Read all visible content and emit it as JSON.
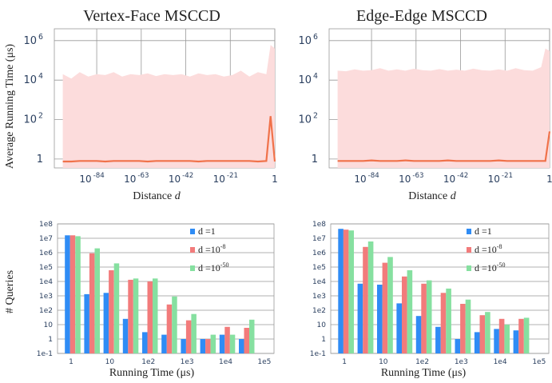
{
  "shared_labels": {
    "top_ylabel": "Average Running Time (μs)",
    "bottom_ylabel": "# Queries",
    "top_xlabel": "Distance d",
    "bottom_xlabel": "Running Time (μs)"
  },
  "colors": {
    "band": "#fcdcdc",
    "line": "#f0724a",
    "d_1": "#2f8cf5",
    "d_1e-8": "#f27b7b",
    "d_1e-50": "#86e0a0",
    "grid": "#999999"
  },
  "chart_data": [
    {
      "type": "area",
      "title": "Vertex-Face MSCCD",
      "xlabel": "Distance d",
      "ylabel": "Average Running Time (μs)",
      "yscale": "log",
      "x_tick_labels": [
        "10^-84",
        "10^-63",
        "10^-42",
        "10^-21",
        "1"
      ],
      "y_tick_labels": [
        "1",
        "10^2",
        "10^4",
        "10^6"
      ],
      "grid": true,
      "series": [
        {
          "kind": "line",
          "x_exp": [
            -100,
            -96,
            -92,
            -88,
            -84,
            -80,
            -76,
            -72,
            -68,
            -64,
            -60,
            -56,
            -52,
            -48,
            -44,
            -40,
            -36,
            -32,
            -28,
            -24,
            -20,
            -16,
            -12,
            -8,
            -4,
            -2,
            0
          ],
          "values": [
            0.75,
            0.75,
            0.8,
            0.8,
            0.8,
            0.75,
            0.8,
            0.8,
            0.8,
            0.8,
            0.75,
            0.8,
            0.8,
            0.8,
            0.8,
            0.8,
            0.75,
            0.8,
            0.8,
            0.8,
            0.8,
            0.8,
            0.8,
            0.75,
            0.8,
            150,
            0.75
          ]
        },
        {
          "kind": "band",
          "x_exp": [
            -100,
            -96,
            -92,
            -88,
            -84,
            -80,
            -76,
            -72,
            -68,
            -64,
            -60,
            -56,
            -52,
            -48,
            -44,
            -40,
            -36,
            -32,
            -28,
            -24,
            -20,
            -16,
            -12,
            -8,
            -4,
            -2,
            0
          ],
          "upper": [
            20000,
            12000,
            25000,
            15000,
            20000,
            18000,
            25000,
            15000,
            20000,
            18000,
            22000,
            16000,
            20000,
            18000,
            20000,
            15000,
            22000,
            18000,
            20000,
            15000,
            18000,
            30000,
            15000,
            25000,
            20000,
            600000,
            400000
          ],
          "lower": [
            0.1,
            0.1,
            0.1,
            0.1,
            0.1,
            0.1,
            0.1,
            0.1,
            0.1,
            0.1,
            0.1,
            0.1,
            0.1,
            0.1,
            0.1,
            0.1,
            0.1,
            0.1,
            0.1,
            0.1,
            0.1,
            0.1,
            0.1,
            0.1,
            0.1,
            0.1,
            0.1
          ]
        }
      ]
    },
    {
      "type": "area",
      "title": "Edge-Edge MSCCD",
      "xlabel": "Distance d",
      "ylabel": "",
      "yscale": "log",
      "x_tick_labels": [
        "10^-84",
        "10^-63",
        "10^-42",
        "10^-21",
        "1"
      ],
      "y_tick_labels": [
        "1",
        "10^2",
        "10^4",
        "10^6"
      ],
      "grid": true,
      "series": [
        {
          "kind": "line",
          "x_exp": [
            -100,
            -96,
            -92,
            -88,
            -84,
            -80,
            -76,
            -72,
            -68,
            -64,
            -60,
            -56,
            -52,
            -48,
            -44,
            -40,
            -36,
            -32,
            -28,
            -24,
            -20,
            -16,
            -12,
            -8,
            -4,
            -2,
            0
          ],
          "values": [
            0.8,
            0.8,
            0.8,
            0.8,
            0.85,
            0.8,
            0.8,
            0.8,
            0.85,
            0.8,
            0.8,
            0.8,
            0.8,
            0.85,
            0.8,
            0.8,
            0.8,
            0.8,
            0.8,
            0.85,
            0.8,
            0.8,
            0.8,
            0.8,
            0.8,
            0.8,
            25
          ]
        },
        {
          "kind": "band",
          "x_exp": [
            -100,
            -96,
            -92,
            -88,
            -84,
            -80,
            -76,
            -72,
            -68,
            -64,
            -60,
            -56,
            -52,
            -48,
            -44,
            -40,
            -36,
            -32,
            -28,
            -24,
            -20,
            -16,
            -12,
            -8,
            -4,
            -2,
            0
          ],
          "upper": [
            30000,
            28000,
            35000,
            30000,
            32000,
            40000,
            30000,
            35000,
            30000,
            38000,
            32000,
            30000,
            36000,
            30000,
            34000,
            30000,
            38000,
            32000,
            30000,
            35000,
            30000,
            40000,
            32000,
            30000,
            45000,
            400000,
            300000
          ],
          "lower": [
            0.1,
            0.1,
            0.1,
            0.1,
            0.1,
            0.1,
            0.1,
            0.1,
            0.1,
            0.1,
            0.1,
            0.1,
            0.1,
            0.1,
            0.1,
            0.1,
            0.1,
            0.1,
            0.1,
            0.1,
            0.1,
            0.1,
            0.1,
            0.1,
            0.1,
            0.1,
            0.1
          ]
        }
      ]
    },
    {
      "type": "bar",
      "title": "",
      "xlabel": "Running Time (μs)",
      "ylabel": "# Queries",
      "yscale": "log",
      "x_tick_labels": [
        "1",
        "10",
        "1e2",
        "1e3",
        "1e4",
        "1e5"
      ],
      "y_tick_labels": [
        "1e-1",
        "1",
        "10",
        "1e2",
        "1e3",
        "1e4",
        "1e5",
        "1e6",
        "1e7",
        "1e8"
      ],
      "legend_position": "top-right",
      "series": [
        {
          "name": "d =1",
          "values": [
            16000000.0,
            1300,
            1600,
            25,
            3,
            2,
            1,
            1,
            2,
            1
          ]
        },
        {
          "name": "d =10-8",
          "values": [
            16000000.0,
            900000.0,
            60000.0,
            13000.0,
            10000.0,
            250,
            20,
            1,
            7,
            6
          ]
        },
        {
          "name": "d =10-50",
          "values": [
            14000000.0,
            2000000.0,
            180000.0,
            16000.0,
            16000.0,
            900,
            55,
            2,
            2,
            22
          ]
        }
      ]
    },
    {
      "type": "bar",
      "title": "",
      "xlabel": "Running Time (μs)",
      "ylabel": "",
      "yscale": "log",
      "x_tick_labels": [
        "1",
        "10",
        "1e2",
        "1e3",
        "1e4",
        "1e5"
      ],
      "y_tick_labels": [
        "1e-1",
        "1",
        "10",
        "1e2",
        "1e3",
        "1e4",
        "1e5",
        "1e6",
        "1e7",
        "1e8"
      ],
      "legend_position": "top-right",
      "series": [
        {
          "name": "d =1",
          "values": [
            45000000.0,
            7000,
            6000,
            300,
            40,
            7,
            1,
            3,
            5,
            4
          ]
        },
        {
          "name": "d =10-8",
          "values": [
            40000000.0,
            2500000.0,
            200000.0,
            22000.0,
            7000,
            1600,
            280,
            45,
            25,
            25
          ]
        },
        {
          "name": "d =10-50",
          "values": [
            35000000.0,
            6000000.0,
            500000.0,
            60000.0,
            12000.0,
            3200,
            550,
            75,
            10,
            30
          ]
        }
      ]
    }
  ]
}
